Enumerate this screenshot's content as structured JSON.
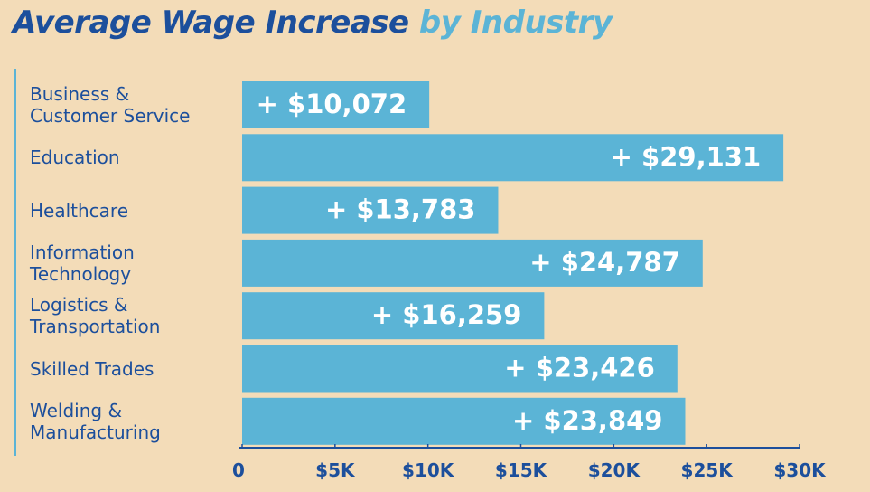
{
  "chart_data": {
    "type": "bar",
    "orientation": "horizontal",
    "title": "Average Wage Increase by Industry",
    "title_parts": {
      "main": "Average Wage Increase",
      "accent": "by Industry"
    },
    "categories": [
      "Business &\nCustomer Service",
      "Education",
      "Healthcare",
      "Information\nTechnology",
      "Logistics &\nTransportation",
      "Skilled Trades",
      "Welding &\nManufacturing"
    ],
    "values": [
      10072,
      29131,
      13783,
      24787,
      16259,
      23426,
      23849
    ],
    "data_labels": [
      "+ $10,072",
      "+ $29,131",
      "+ $13,783",
      "+ $24,787",
      "+ $16,259",
      "+ $23,426",
      "+ $23,849"
    ],
    "xlim": [
      0,
      30000
    ],
    "xticks": [
      0,
      5000,
      10000,
      15000,
      20000,
      25000,
      30000
    ],
    "xtick_labels": [
      "0",
      "$5K",
      "$10K",
      "$15K",
      "$20K",
      "$25K",
      "$30K"
    ],
    "xlabel": "",
    "ylabel": "",
    "grid": false,
    "legend": "none"
  },
  "colors": {
    "background": "#f3dcb8",
    "bar": "#5bb4d6",
    "title_main": "#1c4f9c",
    "title_accent": "#5bb4d6",
    "label_text": "#1c4f9c",
    "bar_text": "#ffffff"
  }
}
